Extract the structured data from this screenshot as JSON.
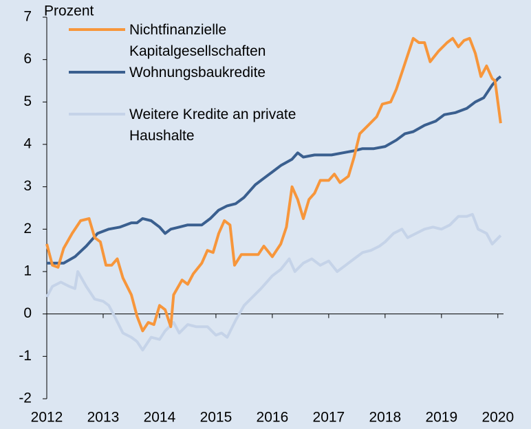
{
  "chart_data": {
    "type": "line",
    "y_label": "Prozent",
    "xlim": [
      2012,
      2020.1
    ],
    "xticks": [
      2012,
      2013,
      2014,
      2015,
      2016,
      2017,
      2018,
      2019,
      2020
    ],
    "ylim": [
      -2,
      7
    ],
    "yticks": [
      -2,
      -1,
      0,
      1,
      2,
      3,
      4,
      5,
      6,
      7
    ],
    "grid": false,
    "legend": "top-left",
    "series": [
      {
        "name": "Nichtfinanzielle Kapitalgesellschaften",
        "color": "#f7963b",
        "x": [
          2012.0,
          2012.1,
          2012.2,
          2012.3,
          2012.45,
          2012.6,
          2012.75,
          2012.85,
          2012.95,
          2013.05,
          2013.15,
          2013.25,
          2013.35,
          2013.5,
          2013.6,
          2013.7,
          2013.8,
          2013.9,
          2014.0,
          2014.1,
          2014.2,
          2014.25,
          2014.4,
          2014.5,
          2014.6,
          2014.75,
          2014.85,
          2014.95,
          2015.05,
          2015.15,
          2015.25,
          2015.33,
          2015.45,
          2015.6,
          2015.75,
          2015.85,
          2016.0,
          2016.15,
          2016.25,
          2016.35,
          2016.45,
          2016.55,
          2016.65,
          2016.75,
          2016.85,
          2017.0,
          2017.1,
          2017.2,
          2017.35,
          2017.45,
          2017.55,
          2017.7,
          2017.85,
          2017.95,
          2018.1,
          2018.2,
          2018.3,
          2018.4,
          2018.5,
          2018.6,
          2018.7,
          2018.8,
          2018.95,
          2019.1,
          2019.2,
          2019.3,
          2019.4,
          2019.5,
          2019.6,
          2019.7,
          2019.8,
          2019.9,
          2019.95,
          2020.05
        ],
        "values": [
          1.65,
          1.15,
          1.1,
          1.55,
          1.9,
          2.2,
          2.25,
          1.8,
          1.7,
          1.15,
          1.15,
          1.3,
          0.85,
          0.45,
          -0.05,
          -0.4,
          -0.2,
          -0.25,
          0.2,
          0.1,
          -0.3,
          0.45,
          0.8,
          0.7,
          0.95,
          1.2,
          1.5,
          1.45,
          1.9,
          2.2,
          2.1,
          1.15,
          1.4,
          1.4,
          1.4,
          1.6,
          1.35,
          1.65,
          2.05,
          3.0,
          2.7,
          2.25,
          2.7,
          2.85,
          3.15,
          3.15,
          3.3,
          3.1,
          3.25,
          3.7,
          4.25,
          4.45,
          4.65,
          4.95,
          5.0,
          5.3,
          5.7,
          6.1,
          6.5,
          6.4,
          6.4,
          5.95,
          6.2,
          6.4,
          6.5,
          6.3,
          6.45,
          6.5,
          6.15,
          5.6,
          5.85,
          5.55,
          5.5,
          4.5
        ]
      },
      {
        "name": "Wohnungsbaukredite",
        "color": "#3a5f8f",
        "x": [
          2012.0,
          2012.3,
          2012.5,
          2012.7,
          2012.9,
          2013.1,
          2013.3,
          2013.5,
          2013.6,
          2013.7,
          2013.85,
          2014.0,
          2014.1,
          2014.2,
          2014.35,
          2014.5,
          2014.75,
          2014.9,
          2015.05,
          2015.2,
          2015.35,
          2015.5,
          2015.7,
          2015.85,
          2016.0,
          2016.15,
          2016.35,
          2016.45,
          2016.55,
          2016.75,
          2016.9,
          2017.05,
          2017.25,
          2017.45,
          2017.6,
          2017.8,
          2018.0,
          2018.2,
          2018.35,
          2018.5,
          2018.7,
          2018.9,
          2019.05,
          2019.25,
          2019.45,
          2019.6,
          2019.75,
          2019.9,
          2020.0,
          2020.05
        ],
        "values": [
          1.2,
          1.2,
          1.35,
          1.6,
          1.9,
          2.0,
          2.05,
          2.15,
          2.15,
          2.25,
          2.2,
          2.05,
          1.9,
          2.0,
          2.05,
          2.1,
          2.1,
          2.25,
          2.45,
          2.55,
          2.6,
          2.75,
          3.05,
          3.2,
          3.35,
          3.5,
          3.65,
          3.8,
          3.7,
          3.75,
          3.75,
          3.75,
          3.8,
          3.85,
          3.9,
          3.9,
          3.95,
          4.1,
          4.25,
          4.3,
          4.45,
          4.55,
          4.7,
          4.75,
          4.85,
          5.0,
          5.1,
          5.4,
          5.55,
          5.6
        ]
      },
      {
        "name": "Weitere Kredite an private Haushalte",
        "color": "#c5d3e8",
        "x": [
          2012.0,
          2012.1,
          2012.25,
          2012.4,
          2012.5,
          2012.55,
          2012.7,
          2012.85,
          2013.0,
          2013.1,
          2013.2,
          2013.35,
          2013.5,
          2013.6,
          2013.7,
          2013.85,
          2014.0,
          2014.1,
          2014.25,
          2014.35,
          2014.5,
          2014.65,
          2014.85,
          2015.0,
          2015.1,
          2015.2,
          2015.35,
          2015.5,
          2015.65,
          2015.8,
          2016.0,
          2016.15,
          2016.3,
          2016.4,
          2016.55,
          2016.7,
          2016.85,
          2017.0,
          2017.15,
          2017.3,
          2017.45,
          2017.6,
          2017.75,
          2017.9,
          2018.0,
          2018.15,
          2018.3,
          2018.4,
          2018.55,
          2018.7,
          2018.85,
          2019.0,
          2019.15,
          2019.3,
          2019.45,
          2019.55,
          2019.65,
          2019.8,
          2019.9,
          2020.05
        ],
        "values": [
          0.4,
          0.65,
          0.75,
          0.65,
          0.6,
          1.0,
          0.65,
          0.35,
          0.3,
          0.2,
          -0.05,
          -0.45,
          -0.55,
          -0.65,
          -0.85,
          -0.55,
          -0.6,
          -0.4,
          -0.2,
          -0.45,
          -0.25,
          -0.3,
          -0.3,
          -0.5,
          -0.45,
          -0.55,
          -0.15,
          0.2,
          0.4,
          0.6,
          0.9,
          1.05,
          1.3,
          1.0,
          1.2,
          1.3,
          1.15,
          1.25,
          1.0,
          1.15,
          1.3,
          1.45,
          1.5,
          1.6,
          1.7,
          1.9,
          2.0,
          1.8,
          1.9,
          2.0,
          2.05,
          2.0,
          2.1,
          2.3,
          2.3,
          2.35,
          2.0,
          1.9,
          1.65,
          1.85
        ]
      }
    ]
  }
}
